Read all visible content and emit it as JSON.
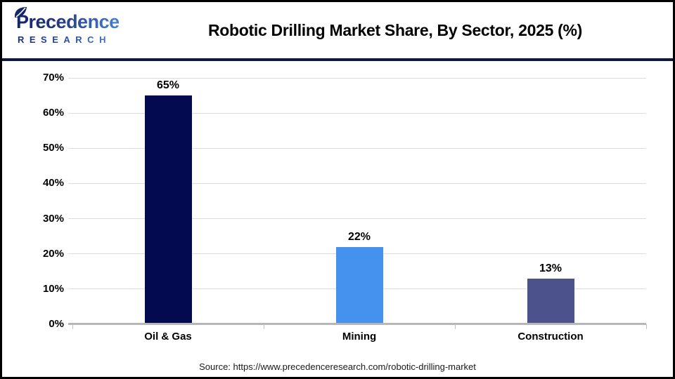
{
  "header": {
    "logo": {
      "line1": "Precedence",
      "line2": "RESEARCH"
    },
    "title": "Robotic Drilling Market Share, By Sector, 2025 (%)"
  },
  "chart_data": {
    "type": "bar",
    "title": "Robotic Drilling Market Share, By Sector, 2025 (%)",
    "categories": [
      "Oil & Gas",
      "Mining",
      "Construction"
    ],
    "values": [
      65,
      22,
      13
    ],
    "value_labels": [
      "65%",
      "22%",
      "13%"
    ],
    "bar_colors": [
      "#040A50",
      "#4592EE",
      "#4C528C"
    ],
    "xlabel": "",
    "ylabel": "",
    "ylim": [
      0,
      70
    ],
    "ytick_step": 10,
    "ytick_labels": [
      "0%",
      "10%",
      "20%",
      "30%",
      "40%",
      "50%",
      "60%",
      "70%"
    ],
    "grid": true,
    "legend": "none"
  },
  "colors": {
    "divider_navy": "#0E1547",
    "gridline": "#DCDCDC",
    "axis_line": "#B7B7B7",
    "category_tick": "#BFBFBF",
    "logo_dark": "#14246b",
    "logo_light": "#4e93e8"
  },
  "footer": {
    "source": "Source: https://www.precedenceresearch.com/robotic-drilling-market"
  }
}
